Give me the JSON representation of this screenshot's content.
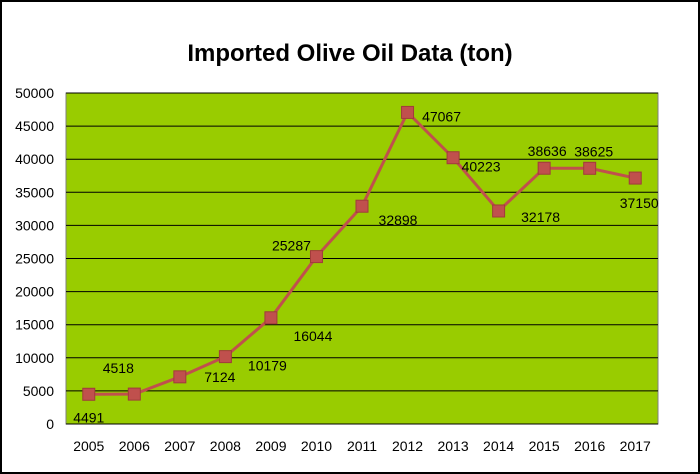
{
  "chart_data": {
    "type": "line",
    "title": "Imported Olive Oil Data (ton)",
    "xlabel": "",
    "ylabel": "",
    "x": [
      "2005",
      "2006",
      "2007",
      "2008",
      "2009",
      "2010",
      "2011",
      "2012",
      "2013",
      "2014",
      "2015",
      "2016",
      "2017"
    ],
    "series": [
      {
        "values": [
          4491,
          4518,
          7124,
          10179,
          16044,
          25287,
          32898,
          47067,
          40223,
          32178,
          38636,
          38625,
          37150
        ],
        "color": "#c0504d"
      }
    ],
    "data_labels": [
      "4491",
      "4518",
      "7124",
      "10179",
      "16044",
      "25287",
      "32898",
      "47067",
      "40223",
      "32178",
      "38636",
      "38625",
      "37150"
    ],
    "ylim": [
      0,
      50000
    ],
    "yticks": [
      "0",
      "5000",
      "10000",
      "15000",
      "20000",
      "25000",
      "30000",
      "35000",
      "40000",
      "45000",
      "50000"
    ],
    "grid": true,
    "legend": "none",
    "colors": {
      "plot_background": "#99cc00",
      "line": "#c0504d",
      "marker": "#c0504d",
      "gridline": "#000000"
    }
  }
}
